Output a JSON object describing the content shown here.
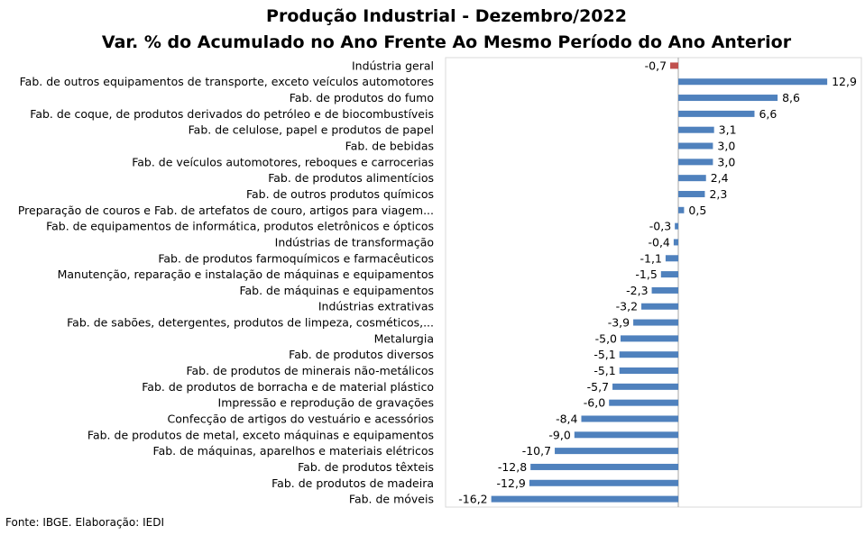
{
  "header": {
    "title": "Produção Industrial - Dezembro/2022",
    "subtitle": "Var. % do Acumulado no Ano Frente Ao Mesmo Período do Ano Anterior"
  },
  "footer": {
    "source": "Fonte: IBGE. Elaboração: IEDI"
  },
  "colors": {
    "bar": "#4f81bd",
    "highlight": "#c0504d",
    "axis": "#a6a6a6"
  },
  "chart_data": {
    "type": "bar",
    "orientation": "horizontal",
    "title": "Produção Industrial - Dezembro/2022",
    "subtitle": "Var. % do Acumulado no Ano Frente Ao Mesmo Período do Ano Anterior",
    "xlim": [
      -16.2,
      12.9
    ],
    "grid": false,
    "legend": "none",
    "categories": [
      "Indústria geral",
      "Fab. de outros equipamentos de transporte, exceto veículos automotores",
      "Fab. de produtos do fumo",
      "Fab. de coque, de produtos derivados do petróleo e de biocombustíveis",
      "Fab. de celulose, papel e produtos de papel",
      "Fab. de bebidas",
      "Fab. de veículos automotores, reboques e carrocerias",
      "Fab. de produtos alimentícios",
      "Fab. de outros produtos químicos",
      "Preparação de couros e Fab. de artefatos de couro, artigos para viagem...",
      "Fab. de equipamentos de informática, produtos eletrônicos e ópticos",
      "Indústrias de transformação",
      "Fab. de produtos farmoquímicos e farmacêuticos",
      "Manutenção, reparação e instalação de máquinas e equipamentos",
      "Fab. de máquinas e equipamentos",
      "Indústrias extrativas",
      "Fab. de sabões, detergentes, produtos de limpeza, cosméticos,...",
      "Metalurgia",
      "Fab. de produtos diversos",
      "Fab. de produtos de minerais não-metálicos",
      "Fab. de produtos de borracha e de material plástico",
      "Impressão e reprodução de gravações",
      "Confecção de artigos do vestuário e acessórios",
      "Fab. de produtos de metal, exceto máquinas e equipamentos",
      "Fab. de máquinas, aparelhos e materiais elétricos",
      "Fab. de produtos têxteis",
      "Fab. de produtos de madeira",
      "Fab. de móveis"
    ],
    "values": [
      -0.7,
      12.9,
      8.6,
      6.6,
      3.1,
      3.0,
      3.0,
      2.4,
      2.3,
      0.5,
      -0.3,
      -0.4,
      -1.1,
      -1.5,
      -2.3,
      -3.2,
      -3.9,
      -5.0,
      -5.1,
      -5.1,
      -5.7,
      -6.0,
      -8.4,
      -9.0,
      -10.7,
      -12.8,
      -12.9,
      -16.2
    ],
    "labels": [
      "-0,7",
      "12,9",
      "8,6",
      "6,6",
      "3,1",
      "3,0",
      "3,0",
      "2,4",
      "2,3",
      "0,5",
      "-0,3",
      "-0,4",
      "-1,1",
      "-1,5",
      "-2,3",
      "-3,2",
      "-3,9",
      "-5,0",
      "-5,1",
      "-5,1",
      "-5,7",
      "-6,0",
      "-8,4",
      "-9,0",
      "-10,7",
      "-12,8",
      "-12,9",
      "-16,2"
    ],
    "highlight_index": 0
  }
}
